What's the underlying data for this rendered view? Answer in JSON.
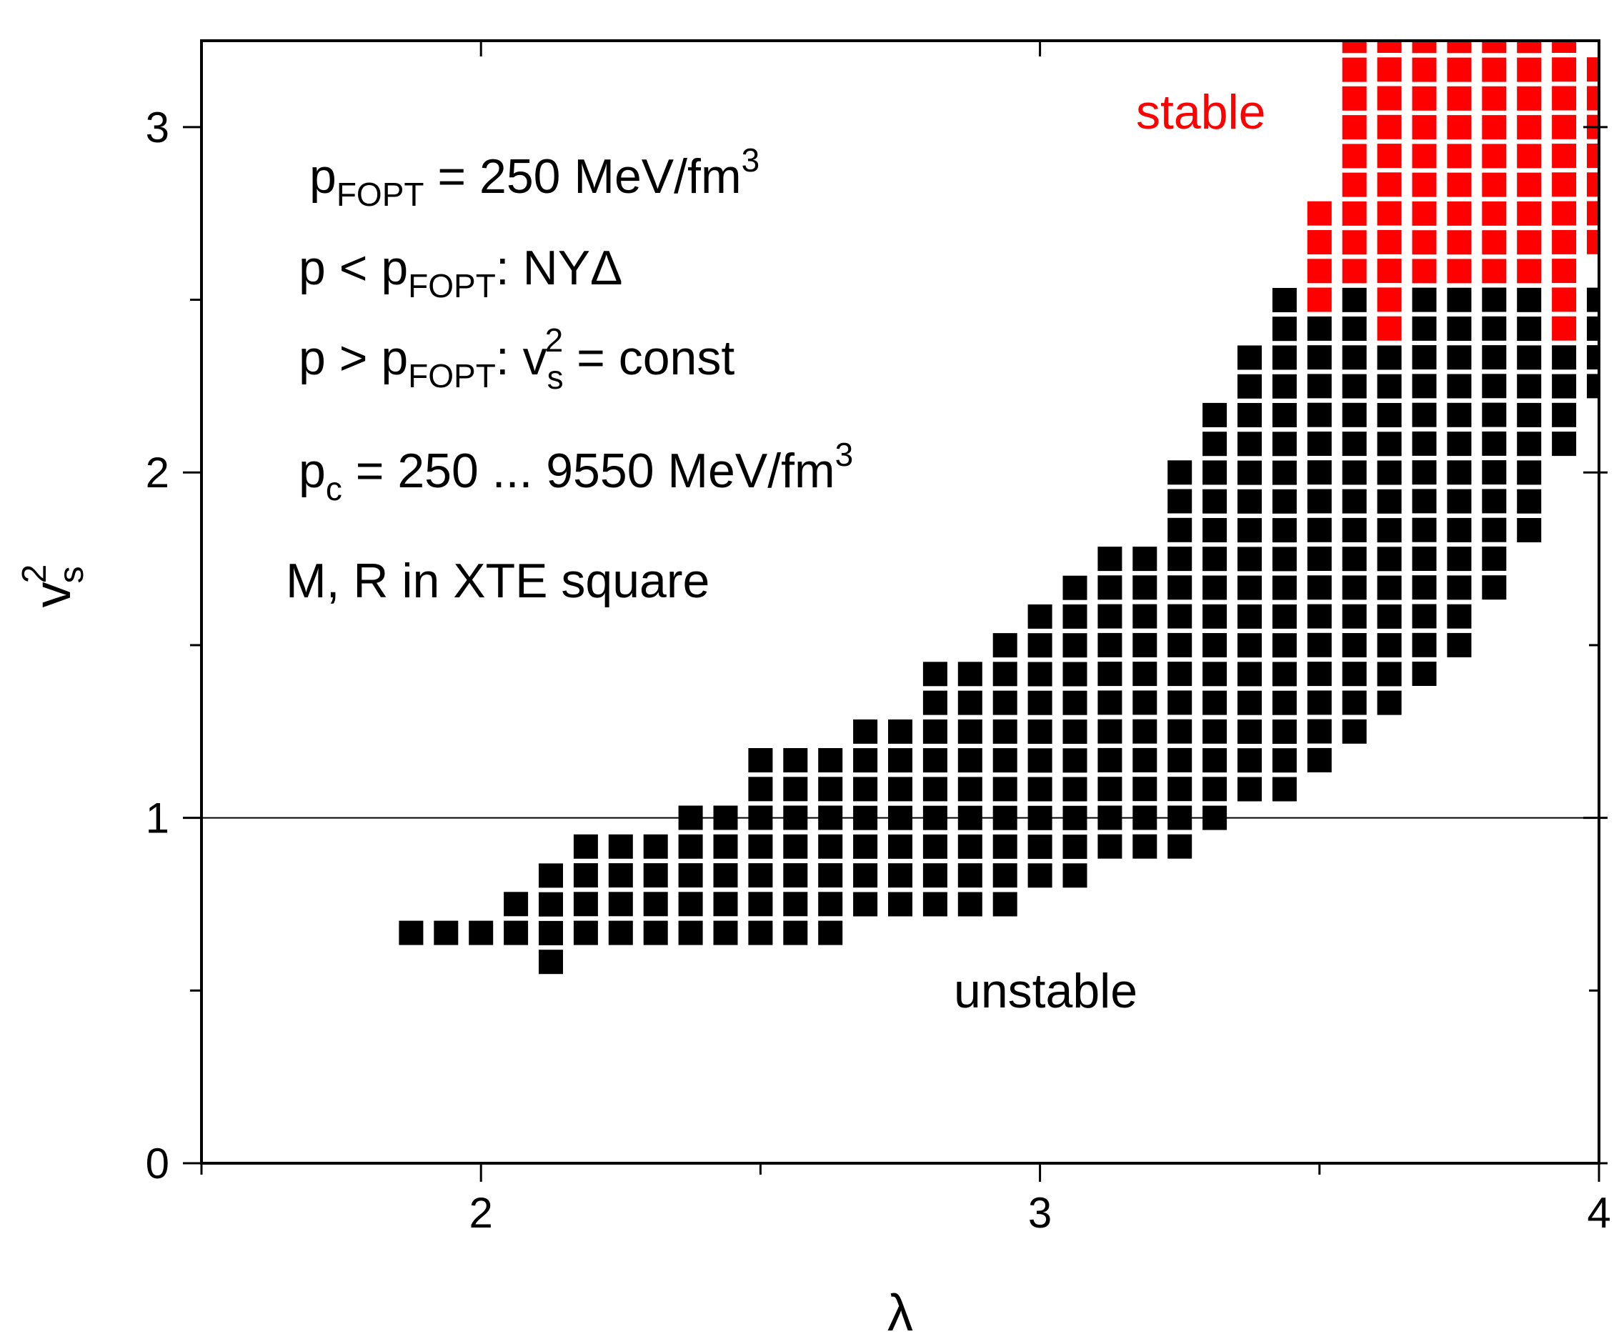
{
  "chart_data": {
    "type": "scatter",
    "xlabel": "λ",
    "ylabel": {
      "base": "v",
      "sub": "s",
      "sup": "2"
    },
    "xlim": [
      1.5,
      4.0
    ],
    "ylim": [
      0,
      3.25
    ],
    "xticks": [
      2,
      3,
      4
    ],
    "xticks_minor": [
      1.5,
      2.5,
      3.5
    ],
    "yticks": [
      0,
      1,
      2,
      3
    ],
    "yticks_minor": [
      0.5,
      1.5,
      2.5
    ],
    "reference_line": {
      "y": 1
    },
    "region_labels": {
      "stable": "stable",
      "unstable": "unstable"
    },
    "annotations": {
      "line1": {
        "p": "p",
        "sub": "FOPT",
        "rest": " = 250 MeV/fm",
        "sup": "3"
      },
      "line2": {
        "a": "p < p",
        "sub": "FOPT",
        "b": ": NYΔ"
      },
      "line3": {
        "a": "p > p",
        "sub": "FOPT",
        "b": ": v",
        "sub2": "s",
        "sup2": "2",
        "c": "  = const"
      },
      "line4": {
        "a": "p",
        "sub": "c",
        "b": " = 250 ... 9550 MeV/fm",
        "sup": "3"
      },
      "line5": "M, R in XTE square"
    },
    "marker_step": {
      "x": 0.0625,
      "y": 0.0833
    },
    "columns": [
      {
        "x": 1.875,
        "unstable": [
          0.667,
          0.667
        ],
        "stable": null
      },
      {
        "x": 1.9375,
        "unstable": [
          0.667,
          0.667
        ],
        "stable": null
      },
      {
        "x": 2.0,
        "unstable": [
          0.667,
          0.75
        ],
        "stable": null
      },
      {
        "x": 2.0625,
        "unstable": [
          0.667,
          0.833
        ],
        "stable": null
      },
      {
        "x": 2.125,
        "unstable": [
          0.583,
          0.833
        ],
        "stable": null
      },
      {
        "x": 2.1875,
        "unstable": [
          0.667,
          0.917
        ],
        "stable": null
      },
      {
        "x": 2.25,
        "unstable": [
          0.667,
          0.917
        ],
        "stable": null
      },
      {
        "x": 2.3125,
        "unstable": [
          0.667,
          1.0
        ],
        "stable": null
      },
      {
        "x": 2.375,
        "unstable": [
          0.667,
          1.083
        ],
        "stable": null
      },
      {
        "x": 2.4375,
        "unstable": [
          0.667,
          1.083
        ],
        "stable": null
      },
      {
        "x": 2.5,
        "unstable": [
          0.667,
          1.167
        ],
        "stable": null
      },
      {
        "x": 2.5625,
        "unstable": [
          0.667,
          1.25
        ],
        "stable": null
      },
      {
        "x": 2.625,
        "unstable": [
          0.667,
          1.25
        ],
        "stable": null
      },
      {
        "x": 2.6875,
        "unstable": [
          0.75,
          1.333
        ],
        "stable": null
      },
      {
        "x": 2.75,
        "unstable": [
          0.75,
          1.333
        ],
        "stable": null
      },
      {
        "x": 2.8125,
        "unstable": [
          0.75,
          1.417
        ],
        "stable": null
      },
      {
        "x": 2.875,
        "unstable": [
          0.75,
          1.417
        ],
        "stable": null
      },
      {
        "x": 2.9375,
        "unstable": [
          0.75,
          1.5
        ],
        "stable": null
      },
      {
        "x": 3.0,
        "unstable": [
          0.833,
          1.583
        ],
        "stable": null
      },
      {
        "x": 3.0625,
        "unstable": [
          0.833,
          1.667
        ],
        "stable": null
      },
      {
        "x": 3.125,
        "unstable": [
          0.917,
          1.75
        ],
        "stable": null
      },
      {
        "x": 3.1875,
        "unstable": [
          0.917,
          1.833
        ],
        "stable": null
      },
      {
        "x": 3.25,
        "unstable": [
          0.917,
          2.0
        ],
        "stable": null
      },
      {
        "x": 3.3125,
        "unstable": [
          1.0,
          2.167
        ],
        "stable": null
      },
      {
        "x": 3.375,
        "unstable": [
          1.083,
          2.333
        ],
        "stable": null
      },
      {
        "x": 3.4375,
        "unstable": [
          1.083,
          2.5
        ],
        "stable": null
      },
      {
        "x": 3.5,
        "unstable": [
          1.167,
          2.417
        ],
        "stable": [
          2.5,
          2.833
        ]
      },
      {
        "x": 3.5625,
        "unstable": [
          1.25,
          2.5
        ],
        "stable": [
          2.583,
          3.25
        ]
      },
      {
        "x": 3.625,
        "unstable": [
          1.333,
          2.333
        ],
        "stable": [
          2.417,
          3.25
        ]
      },
      {
        "x": 3.6875,
        "unstable": [
          1.417,
          2.5
        ],
        "stable": [
          2.583,
          3.25
        ]
      },
      {
        "x": 3.75,
        "unstable": [
          1.5,
          2.5
        ],
        "stable": [
          2.583,
          3.25
        ]
      },
      {
        "x": 3.8125,
        "unstable": [
          1.667,
          2.5
        ],
        "stable": [
          2.583,
          3.25
        ]
      },
      {
        "x": 3.875,
        "unstable": [
          1.833,
          2.5
        ],
        "stable": [
          2.583,
          3.25
        ]
      },
      {
        "x": 3.9375,
        "unstable": [
          2.083,
          2.333
        ],
        "stable": [
          2.417,
          3.25
        ]
      },
      {
        "x": 4.0,
        "unstable": [
          2.25,
          2.583
        ],
        "stable": [
          2.667,
          3.25
        ]
      }
    ]
  }
}
